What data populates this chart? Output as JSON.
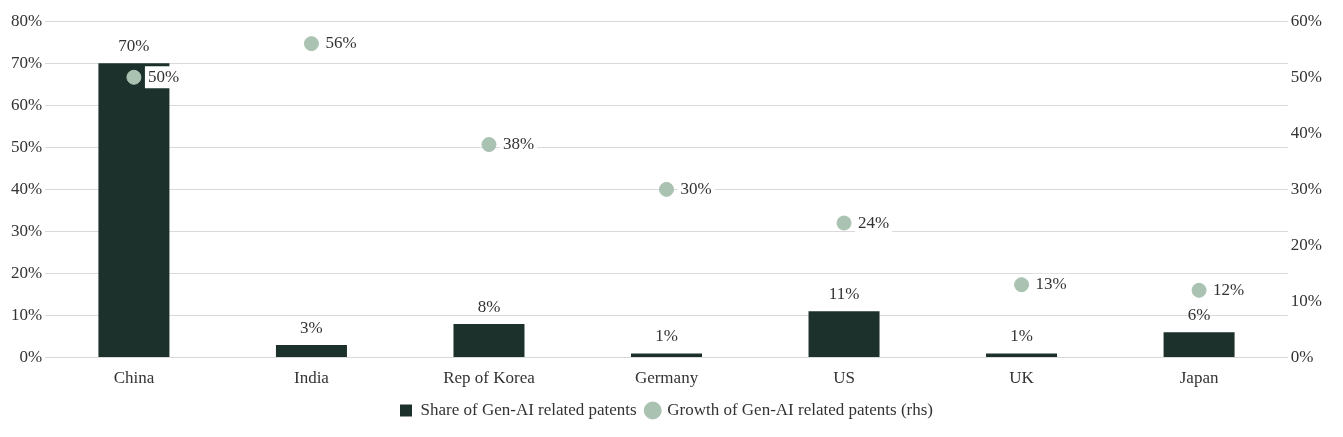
{
  "chart_data": {
    "type": "bar",
    "categories": [
      "China",
      "India",
      "Rep of Korea",
      "Germany",
      "US",
      "UK",
      "Japan"
    ],
    "series": [
      {
        "name": "Share of Gen-AI related patents",
        "color": "#1c312c",
        "values": [
          70,
          3,
          8,
          1,
          11,
          1,
          6
        ],
        "value_labels": [
          "70%",
          "3%",
          "8%",
          "1%",
          "11%",
          "1%",
          "6%"
        ]
      },
      {
        "name": "Growth of Gen-AI related patents (rhs)",
        "type": "scatter",
        "axis": "y2",
        "marker": "circle",
        "color": "#a9c2b2",
        "values": [
          50,
          56,
          38,
          30,
          24,
          13,
          12
        ],
        "value_labels": [
          "50%",
          "56%",
          "38%",
          "30%",
          "24%",
          "13%",
          "12%"
        ]
      }
    ],
    "ylim": [
      0,
      80
    ],
    "yticks": [
      {
        "value": 0,
        "label": "0%"
      },
      {
        "value": 10,
        "label": "10%"
      },
      {
        "value": 20,
        "label": "20%"
      },
      {
        "value": 30,
        "label": "30%"
      },
      {
        "value": 40,
        "label": "40%"
      },
      {
        "value": 50,
        "label": "50%"
      },
      {
        "value": 60,
        "label": "60%"
      },
      {
        "value": 70,
        "label": "70%"
      },
      {
        "value": 80,
        "label": "80%"
      }
    ],
    "y2lim": [
      0,
      60
    ],
    "y2ticks": [
      {
        "value": 0,
        "label": "0%"
      },
      {
        "value": 10,
        "label": "10%"
      },
      {
        "value": 20,
        "label": "20%"
      },
      {
        "value": 30,
        "label": "30%"
      },
      {
        "value": 40,
        "label": "40%"
      },
      {
        "value": 50,
        "label": "50%"
      },
      {
        "value": 60,
        "label": "60%"
      }
    ],
    "grid": "y",
    "legend": "bottom"
  }
}
